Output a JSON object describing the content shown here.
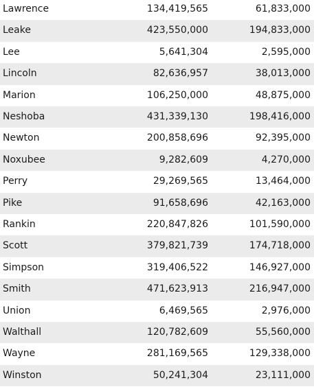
{
  "table": {
    "rows": [
      [
        "Lawrence",
        "134,419,565",
        "61,833,000"
      ],
      [
        "Leake",
        "423,550,000",
        "194,833,000"
      ],
      [
        "Lee",
        "5,641,304",
        "2,595,000"
      ],
      [
        "Lincoln",
        "82,636,957",
        "38,013,000"
      ],
      [
        "Marion",
        "106,250,000",
        "48,875,000"
      ],
      [
        "Neshoba",
        "431,339,130",
        "198,416,000"
      ],
      [
        "Newton",
        "200,858,696",
        "92,395,000"
      ],
      [
        "Noxubee",
        "9,282,609",
        "4,270,000"
      ],
      [
        "Perry",
        "29,269,565",
        "13,464,000"
      ],
      [
        "Pike",
        "91,658,696",
        "42,163,000"
      ],
      [
        "Rankin",
        "220,847,826",
        "101,590,000"
      ],
      [
        "Scott",
        "379,821,739",
        "174,718,000"
      ],
      [
        "Simpson",
        "319,406,522",
        "146,927,000"
      ],
      [
        "Smith",
        "471,623,913",
        "216,947,000"
      ],
      [
        "Union",
        "6,469,565",
        "2,976,000"
      ],
      [
        "Walthall",
        "120,782,609",
        "55,560,000"
      ],
      [
        "Wayne",
        "281,169,565",
        "129,338,000"
      ],
      [
        "Winston",
        "50,241,304",
        "23,111,000"
      ]
    ]
  }
}
